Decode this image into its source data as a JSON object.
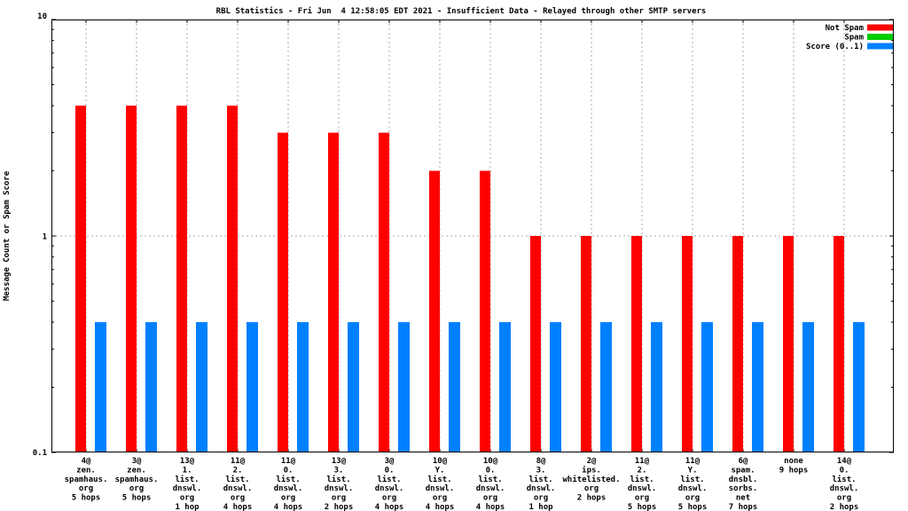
{
  "chart_data": {
    "type": "bar",
    "title": "RBL Statistics - Fri Jun  4 12:58:05 EDT 2021 - Insufficient Data - Relayed through other SMTP servers",
    "ylabel": "Message Count or Spam Score",
    "xlabel": "",
    "y_scale": "log",
    "ylim": [
      0.1,
      10
    ],
    "yticks": [
      {
        "label": "0.1",
        "value": 0.1
      },
      {
        "label": "1",
        "value": 1
      },
      {
        "label": "10",
        "value": 10
      }
    ],
    "grid": "dashed vertical line per category, dashed horizontal line at y=1",
    "legend_position": "top-right inside plot",
    "categories": [
      [
        "4@",
        "zen.",
        "spamhaus.",
        "org",
        "5 hops"
      ],
      [
        "3@",
        "zen.",
        "spamhaus.",
        "org",
        "5 hops"
      ],
      [
        "13@",
        "1.",
        "list.",
        "dnswl.",
        "org",
        "1 hop"
      ],
      [
        "11@",
        "2.",
        "list.",
        "dnswl.",
        "org",
        "4 hops"
      ],
      [
        "11@",
        "0.",
        "list.",
        "dnswl.",
        "org",
        "4 hops"
      ],
      [
        "13@",
        "3.",
        "list.",
        "dnswl.",
        "org",
        "2 hops"
      ],
      [
        "3@",
        "0.",
        "list.",
        "dnswl.",
        "org",
        "4 hops"
      ],
      [
        "10@",
        "Y.",
        "list.",
        "dnswl.",
        "org",
        "4 hops"
      ],
      [
        "10@",
        "0.",
        "list.",
        "dnswl.",
        "org",
        "4 hops"
      ],
      [
        "8@",
        "3.",
        "list.",
        "dnswl.",
        "org",
        "1 hop"
      ],
      [
        "2@",
        "ips.",
        "whitelisted.",
        "org",
        "2 hops"
      ],
      [
        "11@",
        "2.",
        "list.",
        "dnswl.",
        "org",
        "5 hops"
      ],
      [
        "11@",
        "Y.",
        "list.",
        "dnswl.",
        "org",
        "5 hops"
      ],
      [
        "6@",
        "spam.",
        "dnsbl.",
        "sorbs.",
        "net",
        "7 hops"
      ],
      [
        "none",
        "9 hops"
      ],
      [
        "14@",
        "0.",
        "list.",
        "dnswl.",
        "org",
        "2 hops"
      ]
    ],
    "series": [
      {
        "name": "Not Spam",
        "color": "#ff0000",
        "values": [
          4,
          4,
          4,
          4,
          3,
          3,
          3,
          2,
          2,
          1,
          1,
          1,
          1,
          1,
          1,
          1
        ]
      },
      {
        "name": "Spam",
        "color": "#00cc00",
        "values": [
          0,
          0,
          0,
          0,
          0,
          0,
          0,
          0,
          0,
          0,
          0,
          0,
          0,
          0,
          0,
          0
        ]
      },
      {
        "name": "Score (0..1)",
        "color": "#0080ff",
        "values": [
          0.4,
          0.4,
          0.4,
          0.4,
          0.4,
          0.4,
          0.4,
          0.4,
          0.4,
          0.4,
          0.4,
          0.4,
          0.4,
          0.4,
          0.4,
          0.4
        ]
      }
    ]
  }
}
